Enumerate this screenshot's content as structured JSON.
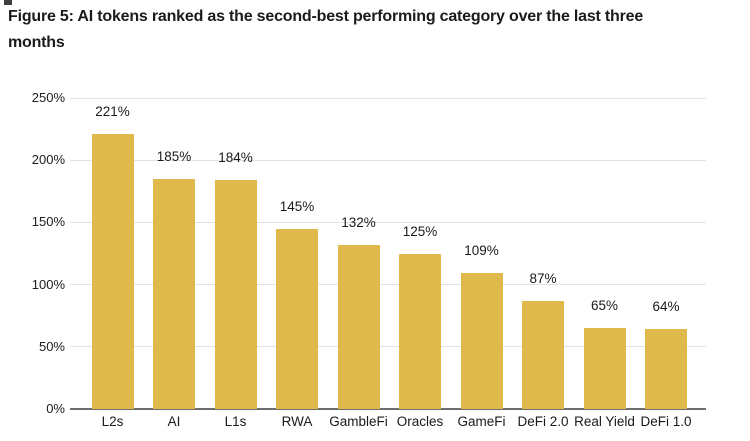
{
  "title_line1": "Figure 5: AI tokens ranked as the second-best performing category over the last three",
  "title_line2": "months",
  "colors": {
    "bar": "#dfb94b",
    "gridline": "#e2e2e2",
    "axis_line": "#6e6e6e",
    "text": "#1a1a1a",
    "background": "#ffffff"
  },
  "chart_data": {
    "type": "bar",
    "title": "Figure 5: AI tokens ranked as the second-best performing category over the last three months",
    "categories": [
      "L2s",
      "AI",
      "L1s",
      "RWA",
      "GambleFi",
      "Oracles",
      "GameFi",
      "DeFi 2.0",
      "Real Yield",
      "DeFi 1.0"
    ],
    "values": [
      221,
      185,
      184,
      145,
      132,
      125,
      109,
      87,
      65,
      64
    ],
    "value_labels": [
      "221%",
      "185%",
      "184%",
      "145%",
      "132%",
      "125%",
      "109%",
      "87%",
      "65%",
      "64%"
    ],
    "xlabel": "",
    "ylabel": "",
    "ylim": [
      0,
      250
    ],
    "yticks": [
      0,
      50,
      100,
      150,
      200,
      250
    ],
    "ytick_labels": [
      "0%",
      "50%",
      "100%",
      "150%",
      "200%",
      "250%"
    ],
    "grid": true,
    "legend_position": "none",
    "bar_color_hex": "#dfb94b"
  }
}
